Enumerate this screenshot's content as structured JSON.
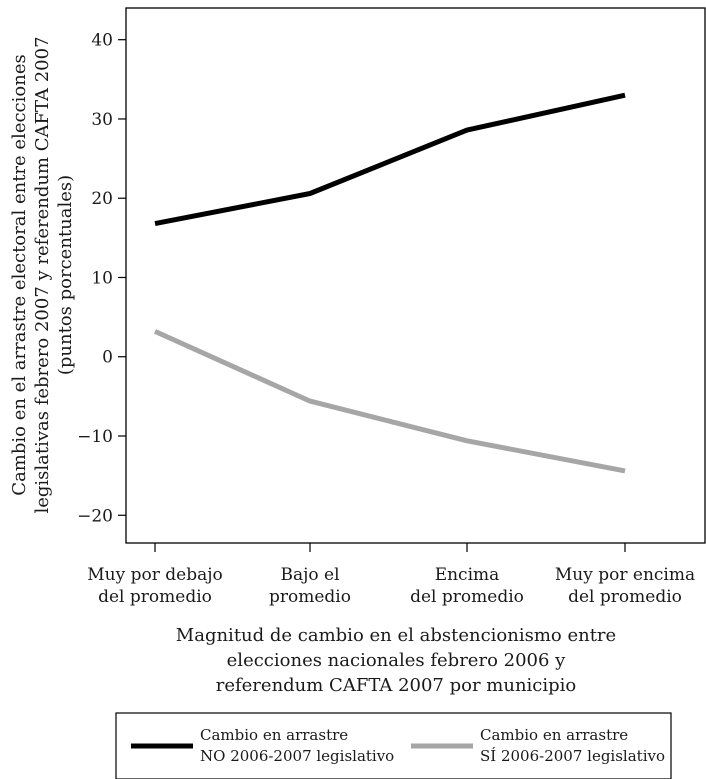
{
  "chart_data": {
    "type": "line",
    "categories": [
      [
        "Muy por debajo",
        "del promedio"
      ],
      [
        "Bajo el",
        "promedio"
      ],
      [
        "Encima",
        "del promedio"
      ],
      [
        "Muy por encima",
        "del promedio"
      ]
    ],
    "series": [
      {
        "name_lines": [
          "Cambio en arrastre",
          "NO 2006-2007 legislativo"
        ],
        "color": "#000000",
        "values": [
          16.8,
          20.6,
          28.6,
          33.0
        ]
      },
      {
        "name_lines": [
          "Cambio en arrastre",
          "SÍ 2006-2007 legislativo"
        ],
        "color": "#a6a6a6",
        "values": [
          3.2,
          -5.6,
          -10.6,
          -14.4
        ]
      }
    ],
    "ylabel_lines": [
      "Cambio en el arrastre electoral entre elecciones",
      "legislativas febrero 2007 y referendum CAFTA 2007",
      "(puntos porcentuales)"
    ],
    "xlabel_lines": [
      "Magnitud de cambio en el abstencionismo entre",
      "elecciones nacionales febrero 2006 y",
      "referendum CAFTA 2007 por municipio"
    ],
    "yticks": [
      -20,
      -10,
      0,
      10,
      20,
      30,
      40
    ],
    "ylim": [
      -23.5,
      44
    ],
    "grid": false,
    "legend_position": "bottom"
  }
}
